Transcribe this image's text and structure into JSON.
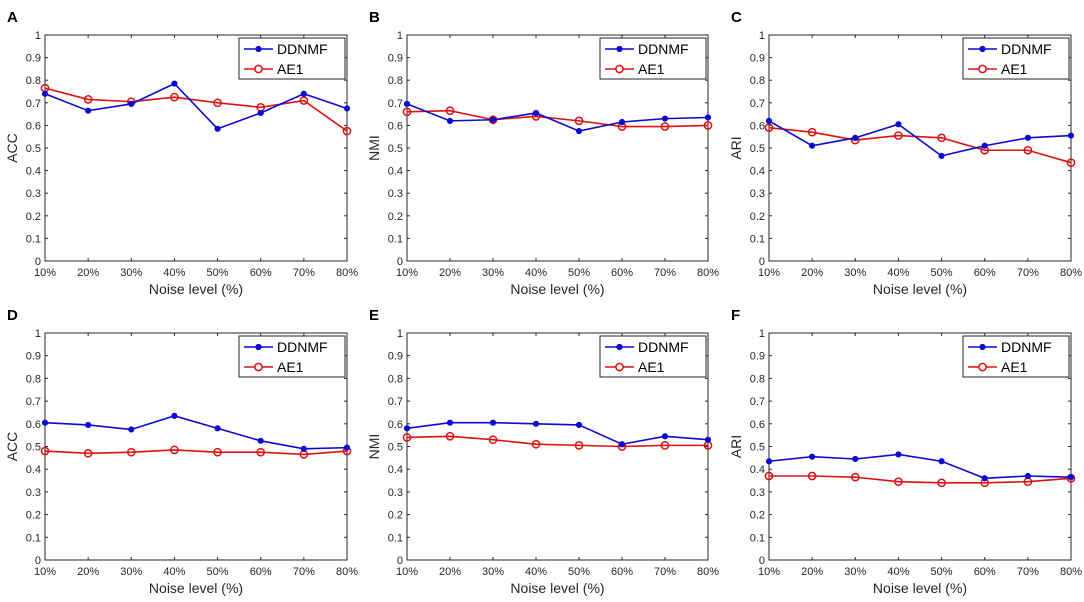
{
  "colors": {
    "DDNMF": "#0a0ad2",
    "AE1": "#e01010",
    "axis": "#262626"
  },
  "chart_data": [
    {
      "panel": "A",
      "type": "line",
      "xlabel": "Noise level (%)",
      "ylabel": "ACC",
      "categories": [
        "10%",
        "20%",
        "30%",
        "40%",
        "50%",
        "60%",
        "70%",
        "80%"
      ],
      "ylim": [
        0,
        1
      ],
      "yticks": [
        "0",
        "0.1",
        "0.2",
        "0.3",
        "0.4",
        "0.5",
        "0.6",
        "0.7",
        "0.8",
        "0.9",
        "1"
      ],
      "legend_position": "top-right",
      "series": [
        {
          "name": "DDNMF",
          "values": [
            0.74,
            0.665,
            0.695,
            0.785,
            0.585,
            0.655,
            0.74,
            0.675
          ]
        },
        {
          "name": "AE1",
          "values": [
            0.765,
            0.715,
            0.705,
            0.725,
            0.7,
            0.68,
            0.71,
            0.575
          ]
        }
      ]
    },
    {
      "panel": "B",
      "type": "line",
      "xlabel": "Noise level (%)",
      "ylabel": "NMI",
      "categories": [
        "10%",
        "20%",
        "30%",
        "40%",
        "50%",
        "60%",
        "70%",
        "80%"
      ],
      "ylim": [
        0,
        1
      ],
      "yticks": [
        "0",
        "0.1",
        "0.2",
        "0.3",
        "0.4",
        "0.5",
        "0.6",
        "0.7",
        "0.8",
        "0.9",
        "1"
      ],
      "legend_position": "top-right",
      "series": [
        {
          "name": "DDNMF",
          "values": [
            0.695,
            0.62,
            0.625,
            0.655,
            0.575,
            0.615,
            0.63,
            0.635
          ]
        },
        {
          "name": "AE1",
          "values": [
            0.66,
            0.665,
            0.625,
            0.64,
            0.62,
            0.595,
            0.595,
            0.6
          ]
        }
      ]
    },
    {
      "panel": "C",
      "type": "line",
      "xlabel": "Noise level (%)",
      "ylabel": "ARI",
      "categories": [
        "10%",
        "20%",
        "30%",
        "40%",
        "50%",
        "60%",
        "70%",
        "80%"
      ],
      "ylim": [
        0,
        1
      ],
      "yticks": [
        "0",
        "0.1",
        "0.2",
        "0.3",
        "0.4",
        "0.5",
        "0.6",
        "0.7",
        "0.8",
        "0.9",
        "1"
      ],
      "legend_position": "top-right",
      "series": [
        {
          "name": "DDNMF",
          "values": [
            0.62,
            0.51,
            0.545,
            0.605,
            0.465,
            0.51,
            0.545,
            0.555
          ]
        },
        {
          "name": "AE1",
          "values": [
            0.59,
            0.57,
            0.535,
            0.555,
            0.545,
            0.49,
            0.49,
            0.435
          ]
        }
      ]
    },
    {
      "panel": "D",
      "type": "line",
      "xlabel": "Noise level (%)",
      "ylabel": "ACC",
      "categories": [
        "10%",
        "20%",
        "30%",
        "40%",
        "50%",
        "60%",
        "70%",
        "80%"
      ],
      "ylim": [
        0,
        1
      ],
      "yticks": [
        "0",
        "0.1",
        "0.2",
        "0.3",
        "0.4",
        "0.5",
        "0.6",
        "0.7",
        "0.8",
        "0.9",
        "1"
      ],
      "legend_position": "top-right",
      "series": [
        {
          "name": "DDNMF",
          "values": [
            0.605,
            0.595,
            0.575,
            0.635,
            0.58,
            0.525,
            0.49,
            0.495
          ]
        },
        {
          "name": "AE1",
          "values": [
            0.48,
            0.47,
            0.475,
            0.485,
            0.475,
            0.475,
            0.465,
            0.48
          ]
        }
      ]
    },
    {
      "panel": "E",
      "type": "line",
      "xlabel": "Noise level (%)",
      "ylabel": "NMI",
      "categories": [
        "10%",
        "20%",
        "30%",
        "40%",
        "50%",
        "60%",
        "70%",
        "80%"
      ],
      "ylim": [
        0,
        1
      ],
      "yticks": [
        "0",
        "0.1",
        "0.2",
        "0.3",
        "0.4",
        "0.5",
        "0.6",
        "0.7",
        "0.8",
        "0.9",
        "1"
      ],
      "legend_position": "top-right",
      "series": [
        {
          "name": "DDNMF",
          "values": [
            0.58,
            0.605,
            0.605,
            0.6,
            0.595,
            0.51,
            0.545,
            0.53
          ]
        },
        {
          "name": "AE1",
          "values": [
            0.54,
            0.545,
            0.53,
            0.51,
            0.505,
            0.5,
            0.505,
            0.505
          ]
        }
      ]
    },
    {
      "panel": "F",
      "type": "line",
      "xlabel": "Noise level (%)",
      "ylabel": "ARI",
      "categories": [
        "10%",
        "20%",
        "30%",
        "40%",
        "50%",
        "60%",
        "70%",
        "80%"
      ],
      "ylim": [
        0,
        1
      ],
      "yticks": [
        "0",
        "0.1",
        "0.2",
        "0.3",
        "0.4",
        "0.5",
        "0.6",
        "0.7",
        "0.8",
        "0.9",
        "1"
      ],
      "legend_position": "top-right",
      "series": [
        {
          "name": "DDNMF",
          "values": [
            0.435,
            0.455,
            0.445,
            0.465,
            0.435,
            0.36,
            0.37,
            0.365
          ]
        },
        {
          "name": "AE1",
          "values": [
            0.37,
            0.37,
            0.365,
            0.345,
            0.34,
            0.34,
            0.345,
            0.36
          ]
        }
      ]
    }
  ]
}
